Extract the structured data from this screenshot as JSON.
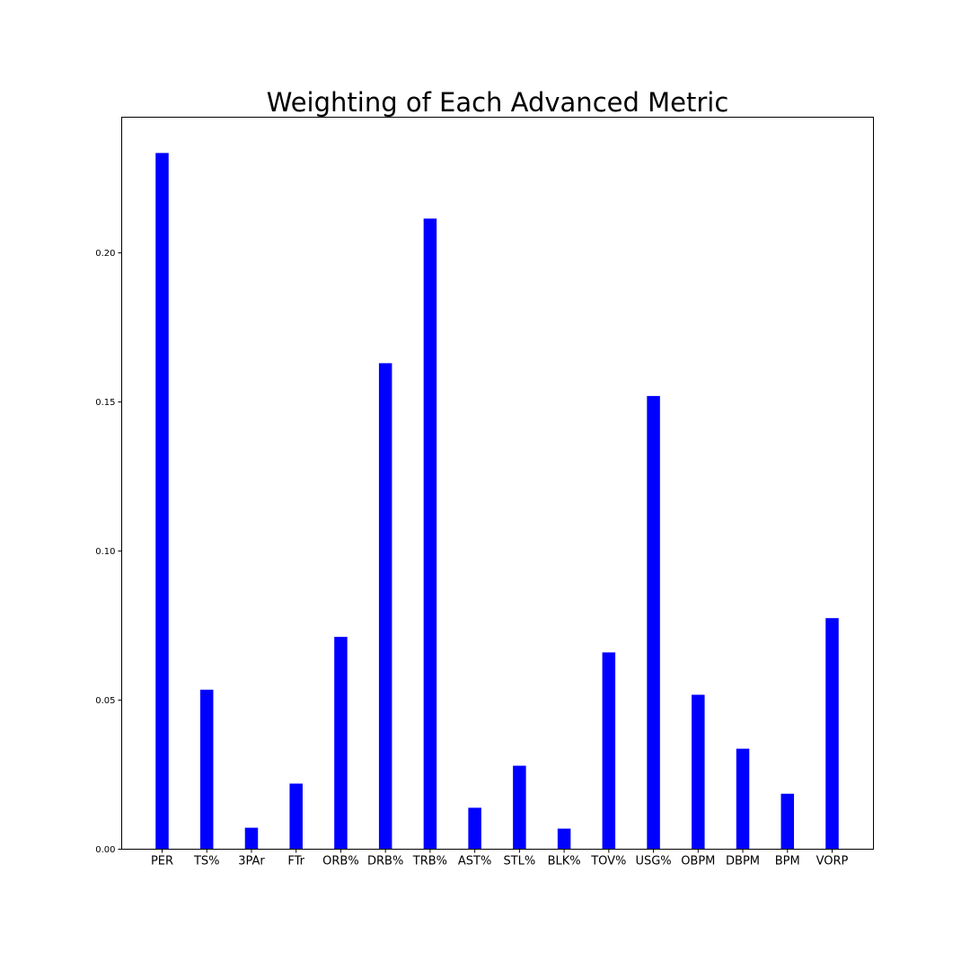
{
  "chart_data": {
    "type": "bar",
    "title": "Weighting of Each Advanced Metric",
    "xlabel": "",
    "ylabel": "",
    "categories": [
      "PER",
      "TS%",
      "3PAr",
      "FTr",
      "ORB%",
      "DRB%",
      "TRB%",
      "AST%",
      "STL%",
      "BLK%",
      "TOV%",
      "USG%",
      "OBPM",
      "DBPM",
      "BPM",
      "VORP"
    ],
    "values": [
      0.2335,
      0.0535,
      0.0072,
      0.022,
      0.0712,
      0.163,
      0.2115,
      0.0139,
      0.028,
      0.0069,
      0.066,
      0.152,
      0.0518,
      0.0337,
      0.0186,
      0.0775
    ],
    "ylim": [
      0,
      0.2455
    ],
    "yticks": [
      "0.00",
      "0.05",
      "0.10",
      "0.15",
      "0.20"
    ],
    "bar_color": "#0000ff",
    "grid": false
  }
}
